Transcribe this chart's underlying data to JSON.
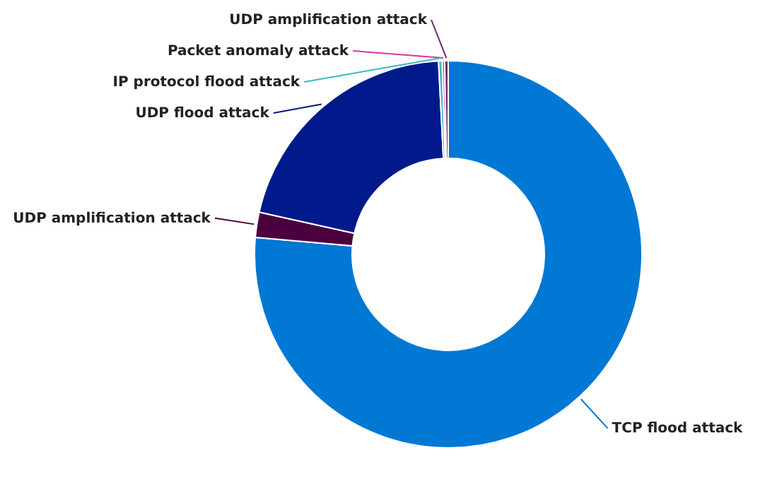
{
  "chart_data": {
    "type": "donut",
    "categories": [
      "TCP flood attack",
      "UDP amplification attack",
      "UDP flood attack",
      "IP protocol flood attack",
      "Packet anomaly attack",
      "UDP amplification attack"
    ],
    "values": [
      76.4,
      2.1,
      20.7,
      0.3,
      0.2,
      0.3
    ],
    "colors": [
      "#0078d4",
      "#4b003f",
      "#001a8c",
      "#3cb8c0",
      "#e0339b",
      "#6b2c6b"
    ]
  }
}
